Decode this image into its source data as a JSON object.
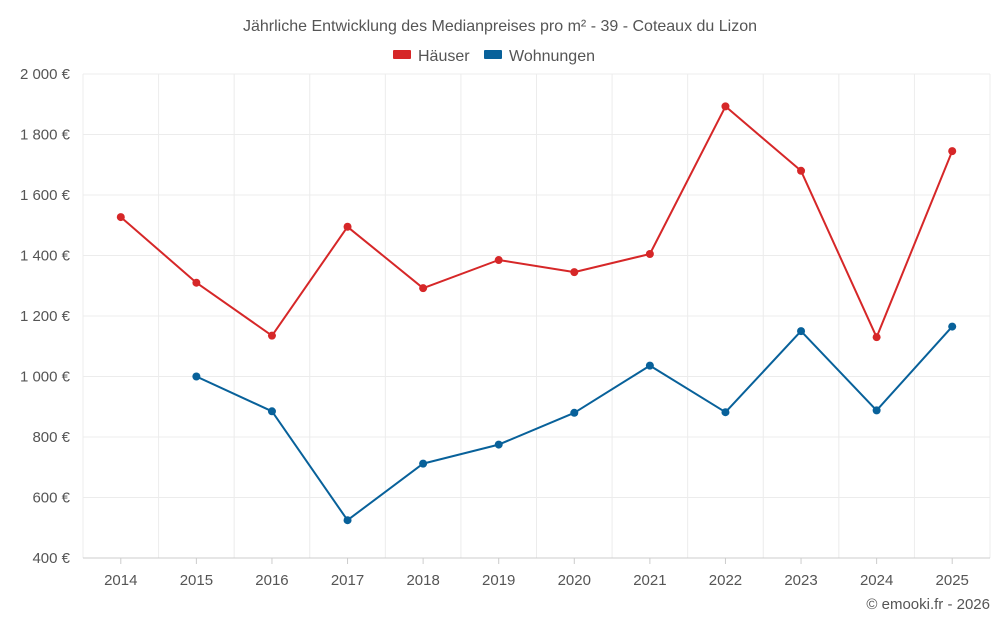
{
  "chart_data": {
    "type": "line",
    "title": "Jährliche Entwicklung des Medianpreises pro m² - 39 - Coteaux du Lizon",
    "categories": [
      "2014",
      "2015",
      "2016",
      "2017",
      "2018",
      "2019",
      "2020",
      "2021",
      "2022",
      "2023",
      "2024",
      "2025"
    ],
    "series": [
      {
        "name": "Häuser",
        "color": "#d62728",
        "values": [
          1527,
          1310,
          1135,
          1495,
          1292,
          1385,
          1345,
          1405,
          1893,
          1680,
          1130,
          1745
        ]
      },
      {
        "name": "Wohnungen",
        "color": "#08619a",
        "values": [
          null,
          1000,
          885,
          525,
          712,
          775,
          880,
          1036,
          882,
          1150,
          888,
          1165
        ]
      }
    ],
    "yticks": [
      400,
      600,
      800,
      1000,
      1200,
      1400,
      1600,
      1800,
      2000
    ],
    "ytick_labels": [
      "400 €",
      "600 €",
      "800 €",
      "1 000 €",
      "1 200 €",
      "1 400 €",
      "1 600 €",
      "1 800 €",
      "2 000 €"
    ],
    "ylim": [
      400,
      2000
    ],
    "xlabel": "",
    "ylabel": "",
    "grid": true,
    "legend_position": "top-center"
  },
  "credit": "© emooki.fr - 2026"
}
